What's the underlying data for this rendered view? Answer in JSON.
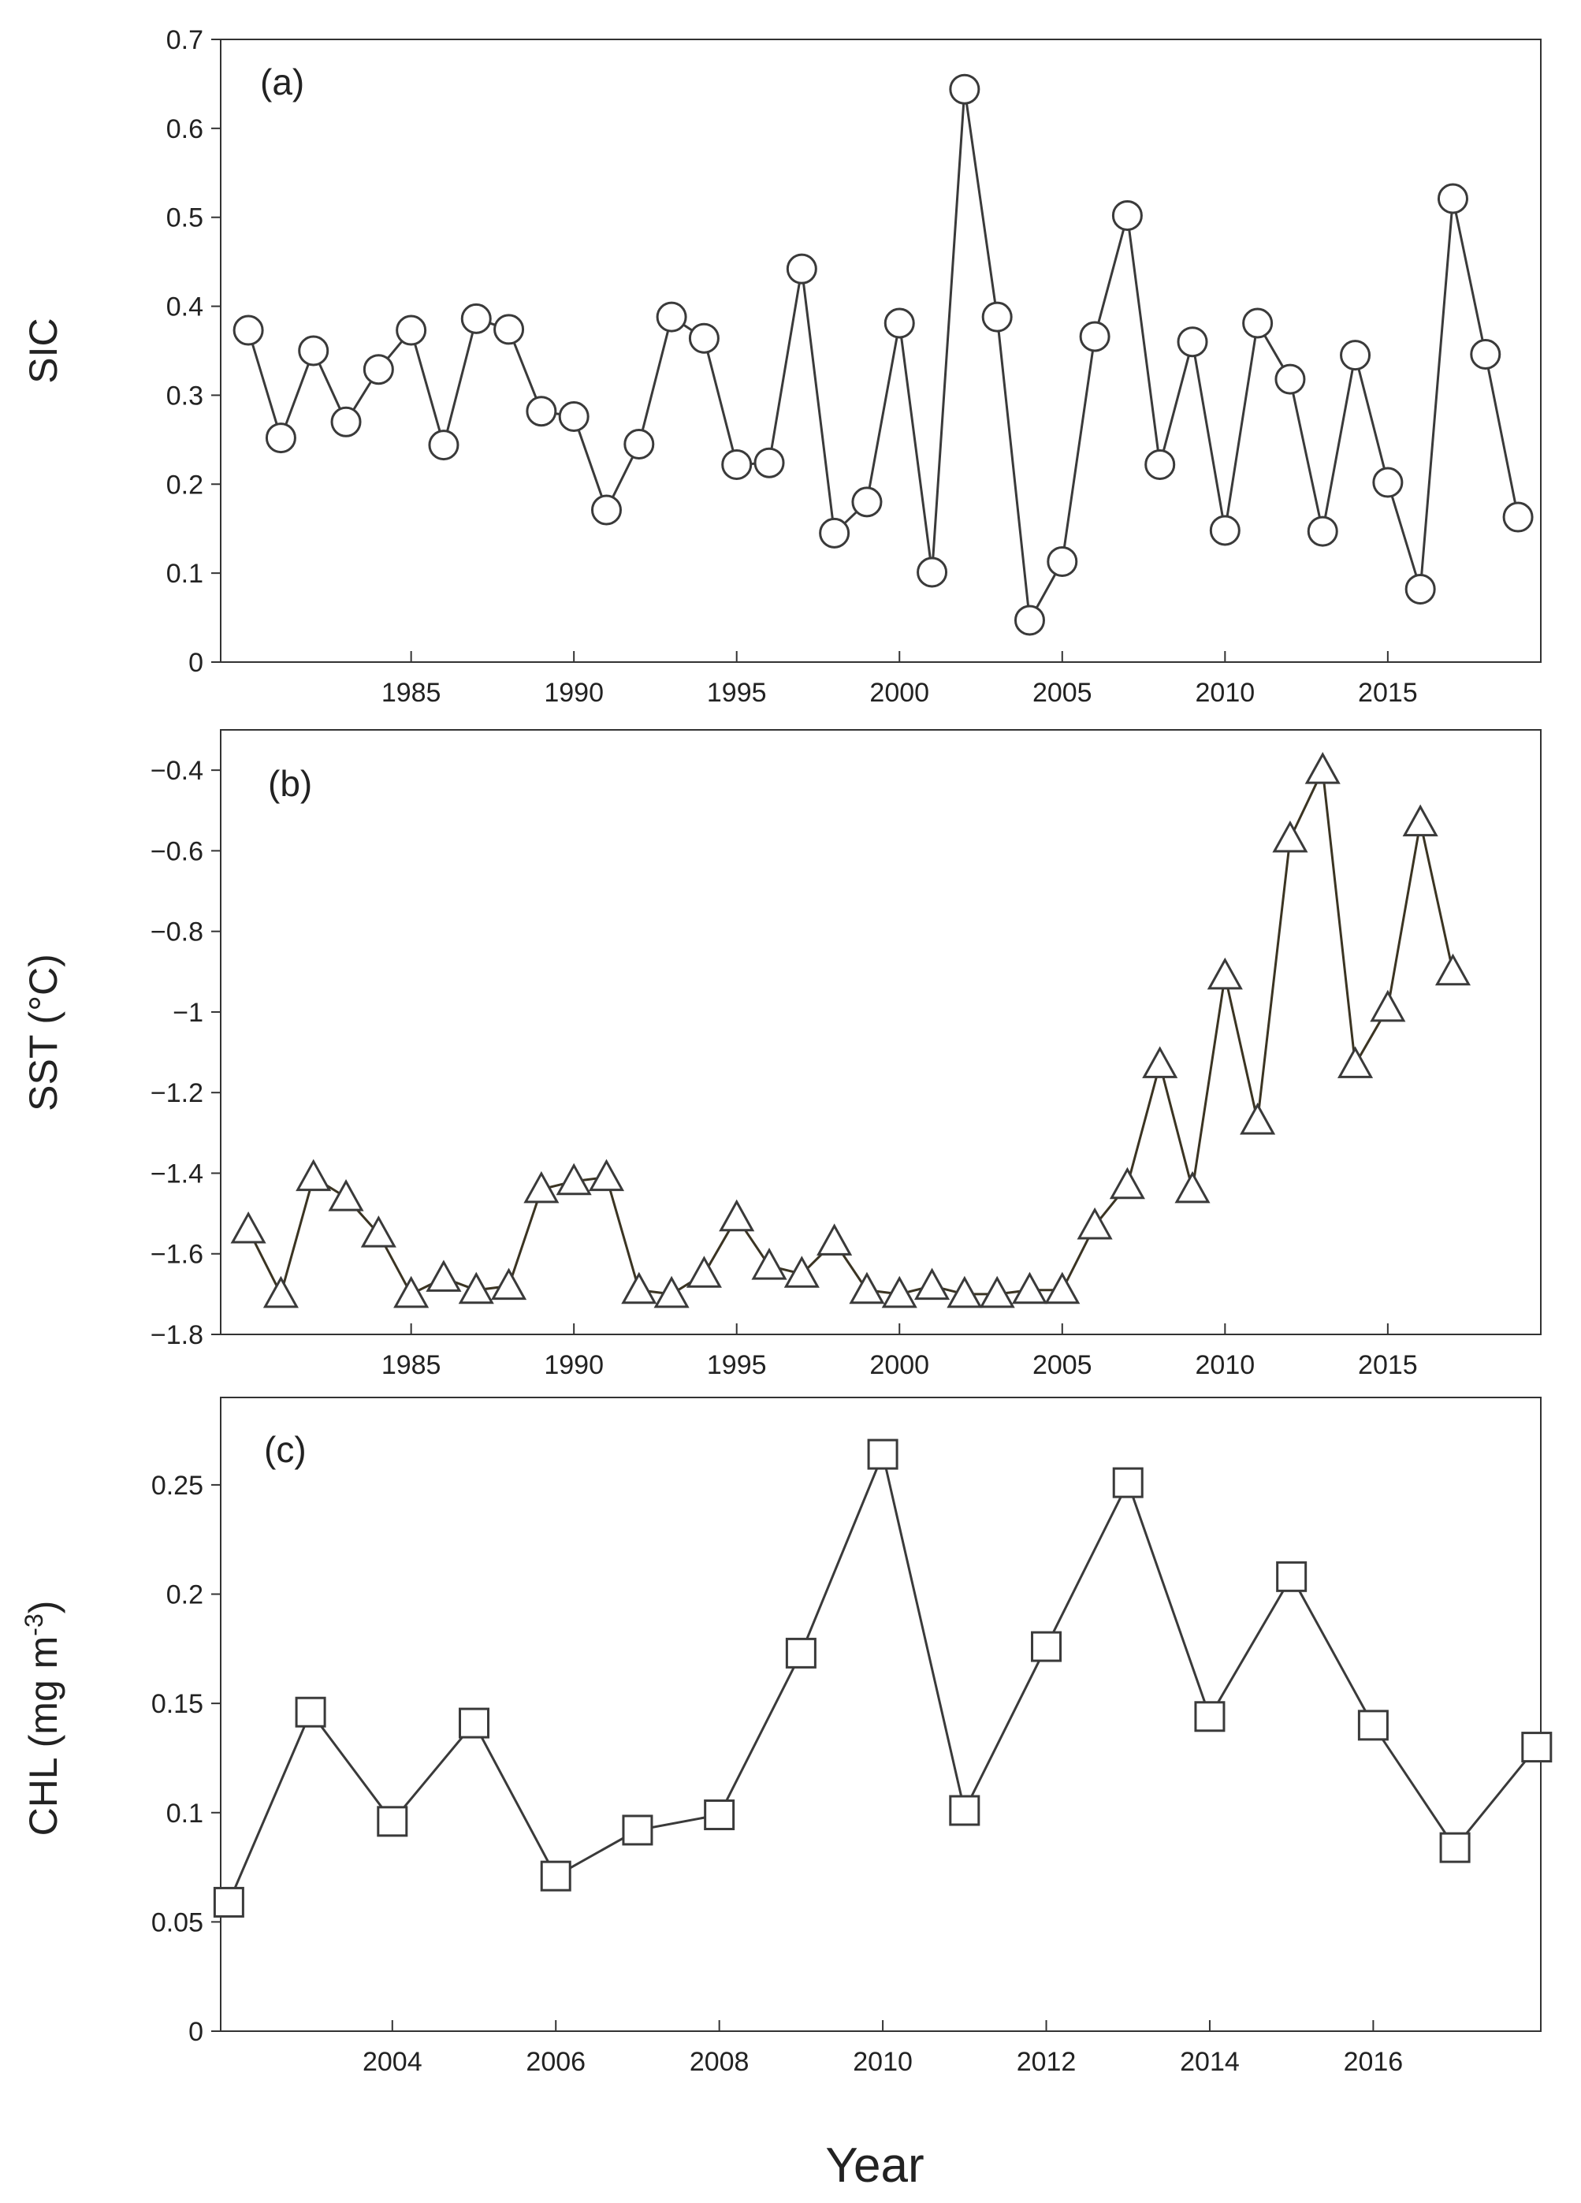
{
  "figure": {
    "xlabel": "Year",
    "colors": {
      "axis": "#333333",
      "line": "#3a3a3a",
      "marker_fill": "#ffffff",
      "sst_line": "#3b3422"
    }
  },
  "chart_data": [
    {
      "id": "sic",
      "type": "line",
      "panel_label": "(a)",
      "title": "",
      "ylabel": "SIC",
      "xlabel": "",
      "marker": "circle",
      "ylim": [
        0,
        0.7
      ],
      "xlim": [
        1980,
        2020
      ],
      "yticks": [
        0,
        0.1,
        0.2,
        0.3,
        0.4,
        0.5,
        0.6,
        0.7
      ],
      "ytick_labels": [
        "0",
        "0.1",
        "0.2",
        "0.3",
        "0.4",
        "0.5",
        "0.6",
        "0.7"
      ],
      "xticks": [
        1985,
        1990,
        1995,
        2000,
        2005,
        2010,
        2015
      ],
      "x": [
        1980,
        1981,
        1982,
        1983,
        1984,
        1985,
        1986,
        1987,
        1988,
        1989,
        1990,
        1991,
        1992,
        1993,
        1994,
        1995,
        1996,
        1997,
        1998,
        1999,
        2000,
        2001,
        2002,
        2003,
        2004,
        2005,
        2006,
        2007,
        2008,
        2009,
        2010,
        2011,
        2012,
        2013,
        2014,
        2015,
        2016,
        2017,
        2018,
        2019
      ],
      "values": [
        0.373,
        0.252,
        0.35,
        0.27,
        0.329,
        0.373,
        0.244,
        0.386,
        0.374,
        0.282,
        0.276,
        0.171,
        0.245,
        0.388,
        0.364,
        0.222,
        0.224,
        0.442,
        0.145,
        0.18,
        0.381,
        0.101,
        0.644,
        0.388,
        0.047,
        0.113,
        0.366,
        0.502,
        0.222,
        0.36,
        0.148,
        0.381,
        0.318,
        0.147,
        0.345,
        0.202,
        0.082,
        0.521,
        0.346,
        0.163
      ]
    },
    {
      "id": "sst",
      "type": "line",
      "panel_label": "(b)",
      "title": "",
      "ylabel": "SST (°C)",
      "xlabel": "",
      "marker": "triangle",
      "ylim": [
        -1.8,
        -0.3
      ],
      "xlim": [
        1980,
        2020
      ],
      "yticks": [
        -1.8,
        -1.6,
        -1.4,
        -1.2,
        -1.0,
        -0.8,
        -0.6,
        -0.4
      ],
      "ytick_labels": [
        "−1.8",
        "−1.6",
        "−1.4",
        "−1.2",
        "−1",
        "−0.8",
        "−0.6",
        "−0.4"
      ],
      "xticks": [
        1985,
        1990,
        1995,
        2000,
        2005,
        2010,
        2015
      ],
      "x": [
        1980,
        1981,
        1982,
        1983,
        1984,
        1985,
        1986,
        1987,
        1988,
        1989,
        1990,
        1991,
        1992,
        1993,
        1994,
        1995,
        1996,
        1997,
        1998,
        1999,
        2000,
        2001,
        2002,
        2003,
        2004,
        2005,
        2006,
        2007,
        2008,
        2009,
        2010,
        2011,
        2012,
        2013,
        2014,
        2015,
        2016,
        2017
      ],
      "values": [
        -1.54,
        -1.7,
        -1.41,
        -1.46,
        -1.55,
        -1.7,
        -1.66,
        -1.69,
        -1.68,
        -1.44,
        -1.42,
        -1.41,
        -1.69,
        -1.7,
        -1.65,
        -1.51,
        -1.63,
        -1.65,
        -1.57,
        -1.69,
        -1.7,
        -1.68,
        -1.7,
        -1.7,
        -1.69,
        -1.69,
        -1.53,
        -1.43,
        -1.13,
        -1.44,
        -0.91,
        -1.27,
        -0.57,
        -0.4,
        -1.13,
        -0.99,
        -0.53,
        -0.9
      ]
    },
    {
      "id": "chl",
      "type": "line",
      "panel_label": "(c)",
      "title": "",
      "ylabel": "CHL (mg m⁻³)",
      "xlabel": "",
      "marker": "square",
      "ylim": [
        0,
        0.29
      ],
      "xlim": [
        2002,
        2018
      ],
      "yticks": [
        0,
        0.05,
        0.1,
        0.15,
        0.2,
        0.25
      ],
      "ytick_labels": [
        "0",
        "0.05",
        "0.1",
        "0.15",
        "0.2",
        "0.25"
      ],
      "xticks": [
        2004,
        2006,
        2008,
        2010,
        2012,
        2014,
        2016
      ],
      "x": [
        2002,
        2003,
        2004,
        2005,
        2006,
        2007,
        2008,
        2009,
        2010,
        2011,
        2012,
        2013,
        2014,
        2015,
        2016,
        2017,
        2018
      ],
      "values": [
        0.059,
        0.146,
        0.096,
        0.141,
        0.071,
        0.092,
        0.099,
        0.173,
        0.264,
        0.101,
        0.176,
        0.251,
        0.144,
        0.208,
        0.14,
        0.084,
        0.13
      ]
    }
  ]
}
